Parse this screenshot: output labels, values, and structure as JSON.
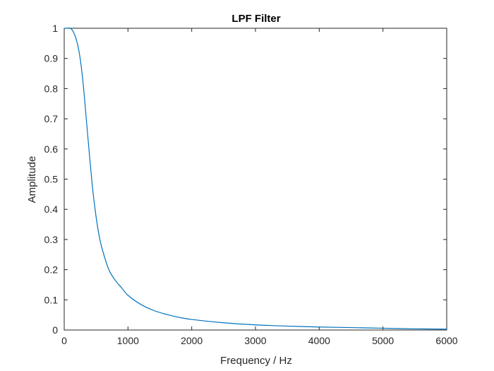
{
  "chart_data": {
    "type": "line",
    "title": "LPF Filter",
    "xlabel": "Frequency / Hz",
    "ylabel": "Amplitude",
    "xlim": [
      0,
      6000
    ],
    "ylim": [
      0,
      1
    ],
    "x_ticks": [
      0,
      1000,
      2000,
      3000,
      4000,
      5000,
      6000
    ],
    "y_ticks": [
      0,
      0.1,
      0.2,
      0.3,
      0.4,
      0.5,
      0.6,
      0.7,
      0.8,
      0.9,
      1
    ],
    "x_tick_labels": [
      "0",
      "1000",
      "2000",
      "3000",
      "4000",
      "5000",
      "6000"
    ],
    "y_tick_labels": [
      "0",
      "0.1",
      "0.2",
      "0.3",
      "0.4",
      "0.5",
      "0.6",
      "0.7",
      "0.8",
      "0.9",
      "1"
    ],
    "grid": false,
    "box": true,
    "colors": {
      "line": "#0072BD",
      "axes": "#262626"
    },
    "series": [
      {
        "x": [
          0,
          50,
          100,
          150,
          200,
          250,
          300,
          350,
          400,
          450,
          500,
          550,
          600,
          700,
          800,
          900,
          1000,
          1200,
          1400,
          1600,
          1800,
          2000,
          2500,
          3000,
          3500,
          4000,
          4500,
          5000,
          5500,
          6000
        ],
        "values": [
          1.0,
          1.0,
          1.0,
          0.985,
          0.955,
          0.9,
          0.81,
          0.69,
          0.57,
          0.46,
          0.375,
          0.31,
          0.265,
          0.2,
          0.165,
          0.14,
          0.115,
          0.085,
          0.065,
          0.052,
          0.042,
          0.035,
          0.024,
          0.017,
          0.013,
          0.01,
          0.008,
          0.006,
          0.004,
          0.003
        ]
      }
    ]
  }
}
